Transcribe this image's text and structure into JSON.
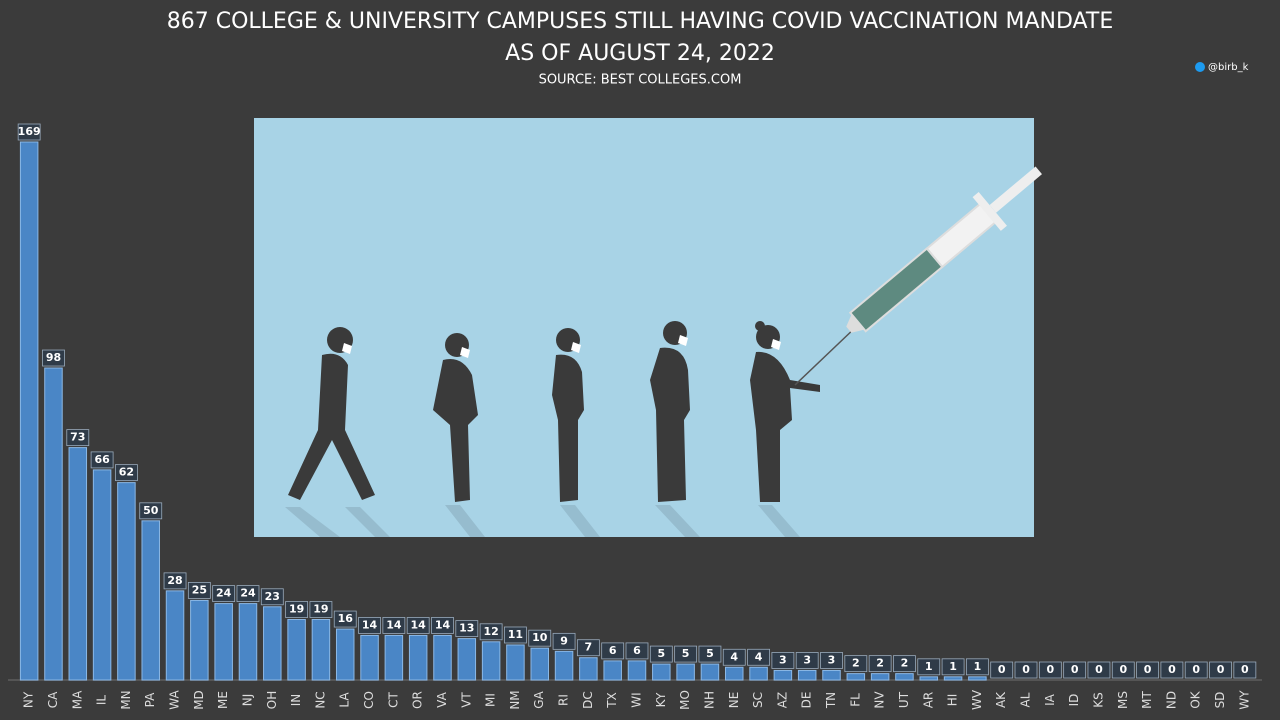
{
  "chart_data": {
    "type": "bar",
    "title": "867 COLLEGE & UNIVERSITY CAMPUSES STILL HAVING COVID VACCINATION MANDATE",
    "subtitle": "AS OF AUGUST 24, 2022",
    "source": "SOURCE: BEST COLLEGES.COM",
    "handle": "@birb_k",
    "categories": [
      "NY",
      "CA",
      "MA",
      "IL",
      "MN",
      "PA",
      "WA",
      "MD",
      "ME",
      "NJ",
      "OH",
      "IN",
      "NC",
      "LA",
      "CO",
      "CT",
      "OR",
      "VA",
      "VT",
      "MI",
      "NM",
      "GA",
      "RI",
      "DC",
      "TX",
      "WI",
      "KY",
      "MO",
      "NH",
      "NE",
      "SC",
      "AZ",
      "DE",
      "TN",
      "FL",
      "NV",
      "UT",
      "AR",
      "HI",
      "WV",
      "AK",
      "AL",
      "IA",
      "ID",
      "KS",
      "MS",
      "MT",
      "ND",
      "OK",
      "SD",
      "WY"
    ],
    "values": [
      169,
      98,
      73,
      66,
      62,
      50,
      28,
      25,
      24,
      24,
      23,
      19,
      19,
      16,
      14,
      14,
      14,
      14,
      13,
      12,
      11,
      10,
      9,
      7,
      6,
      6,
      5,
      5,
      5,
      4,
      4,
      3,
      3,
      3,
      2,
      2,
      2,
      1,
      1,
      1,
      0,
      0,
      0,
      0,
      0,
      0,
      0,
      0,
      0,
      0,
      0
    ],
    "color": "#4a86c6"
  }
}
